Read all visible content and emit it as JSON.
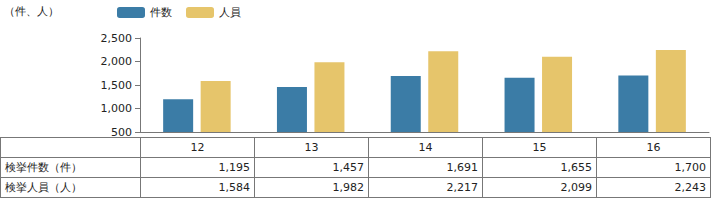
{
  "chart_data": {
    "type": "bar",
    "y_label": "（件、人）",
    "categories": [
      "12",
      "13",
      "14",
      "15",
      "16"
    ],
    "series": [
      {
        "name": "件数",
        "color": "#3b7ca6",
        "table_label": "検挙件数（件）",
        "values": [
          1195,
          1457,
          1691,
          1655,
          1700
        ],
        "value_labels": [
          "1,195",
          "1,457",
          "1,691",
          "1,655",
          "1,700"
        ]
      },
      {
        "name": "人員",
        "color": "#e6c56b",
        "table_label": "検挙人員（人）",
        "values": [
          1584,
          1982,
          2217,
          2099,
          2243
        ],
        "value_labels": [
          "1,584",
          "1,982",
          "2,217",
          "2,099",
          "2,243"
        ]
      }
    ],
    "ylim": [
      500,
      2500
    ],
    "yticks": [
      500,
      {
        "value": 1000,
        "label": "1,000"
      },
      {
        "value": 1500,
        "label": "1,500"
      },
      {
        "value": 2000,
        "label": "2,000"
      },
      {
        "value": 2500,
        "label": "2,500"
      }
    ],
    "grid": false,
    "legend": "top-left"
  }
}
